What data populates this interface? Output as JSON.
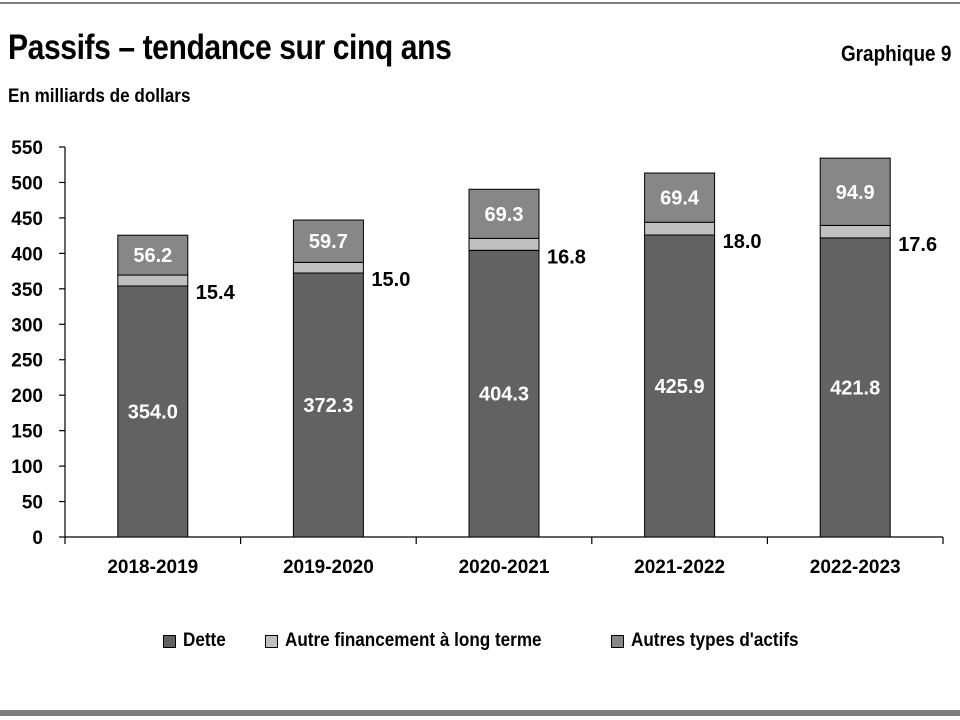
{
  "header": {
    "title": "Passifs – tendance sur cinq ans",
    "chart_number": "Graphique 9",
    "unit_label": "En milliards de dollars"
  },
  "colors": {
    "dette": "#626262",
    "autre_financement": "#c0c0c0",
    "autres_actifs": "#878787",
    "rule": "#7f7f7f"
  },
  "chart_data": {
    "type": "bar",
    "stacked": true,
    "title": "Passifs – tendance sur cinq ans",
    "ylabel": "En milliards de dollars",
    "xlabel": "",
    "ylim": [
      0,
      550
    ],
    "yticks": [
      0,
      50,
      100,
      150,
      200,
      250,
      300,
      350,
      400,
      450,
      500,
      550
    ],
    "grid": false,
    "legend_position": "bottom",
    "categories": [
      "2018-2019",
      "2019-2020",
      "2020-2021",
      "2021-2022",
      "2022-2023"
    ],
    "series": [
      {
        "name": "Dette",
        "color": "#626262",
        "values": [
          354.0,
          372.3,
          404.3,
          425.9,
          421.8
        ]
      },
      {
        "name": "Autre financement à long terme",
        "color": "#c0c0c0",
        "values": [
          15.4,
          15.0,
          16.8,
          18.0,
          17.6
        ]
      },
      {
        "name": "Autres types d'actifs",
        "color": "#878787",
        "values": [
          56.2,
          59.7,
          69.3,
          69.4,
          94.9
        ]
      }
    ]
  }
}
